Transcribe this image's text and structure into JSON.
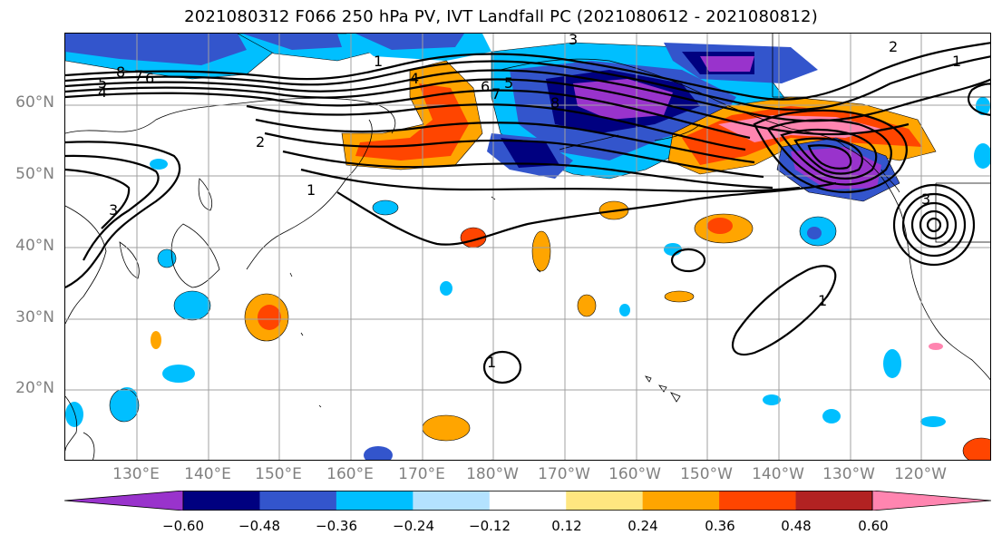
{
  "title": "2021080312 F066 250 hPa PV, IVT Landfall PC (2021080612 - 2021080812)",
  "colors": {
    "pv_contour": "#000000",
    "grid": "#a0a0a0",
    "coast": "#000000",
    "label_gray": "#808080"
  },
  "map": {
    "projection": "plate-carree",
    "lon_range": [
      "120°E",
      "111°W"
    ],
    "lat_range": [
      "10°N",
      "70°N"
    ],
    "gridlines": true
  },
  "lat_labels": [
    "60°N",
    "50°N",
    "40°N",
    "30°N",
    "20°N"
  ],
  "lon_labels": [
    "130°E",
    "140°E",
    "150°E",
    "160°E",
    "170°E",
    "180°W",
    "170°W",
    "160°W",
    "150°W",
    "140°W",
    "130°W",
    "120°W"
  ],
  "contour_labels": [
    "1",
    "2",
    "3",
    "4",
    "5",
    "6",
    "7",
    "8",
    "8",
    "7",
    "6",
    "5",
    "4",
    "3",
    "2",
    "1",
    "1",
    "1",
    "3",
    "1"
  ],
  "colorbar": {
    "colors": [
      "#9933cc",
      "#000080",
      "#3355cc",
      "#00bfff",
      "#b3e2ff",
      "#ffffff",
      "#ffe680",
      "#ffa500",
      "#ff4500",
      "#b22222",
      "#ff85b0"
    ],
    "extend": "both",
    "tick_labels": [
      "−0.60",
      "−0.48",
      "−0.36",
      "−0.24",
      "−0.12",
      "0.12",
      "0.24",
      "0.36",
      "0.48",
      "0.60"
    ]
  }
}
